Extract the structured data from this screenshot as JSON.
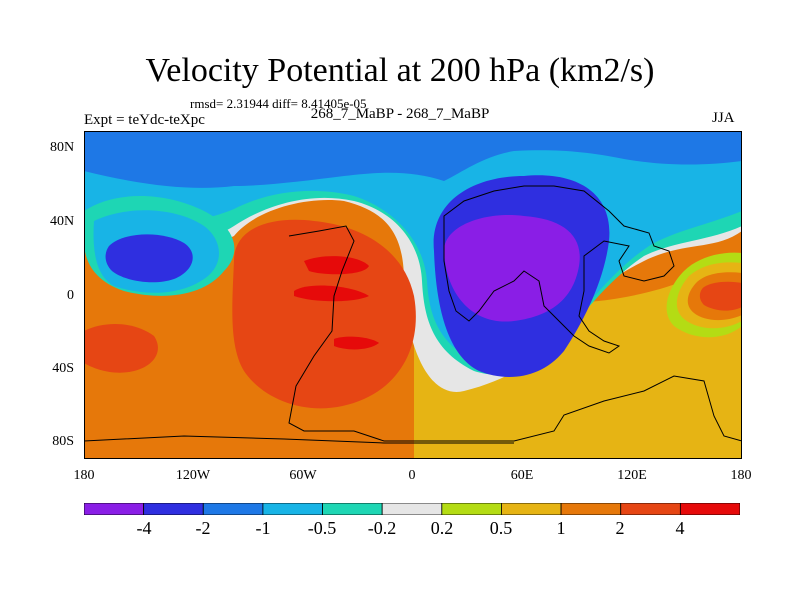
{
  "title": "Velocity Potential at 200 hPa (km2/s)",
  "stats": "rmsd= 2.31944 diff= 8.41405e-05",
  "experiment": "Expt = teYdc-teXpc",
  "comparison": "268_7_MaBP - 268_7_MaBP",
  "season": "JJA",
  "axes": {
    "y_ticks": [
      "80N",
      "40N",
      "0",
      "40S",
      "80S"
    ],
    "x_ticks": [
      "180",
      "120W",
      "60W",
      "0",
      "60E",
      "120E",
      "180"
    ]
  },
  "colorbar": {
    "labels": [
      "-4",
      "-2",
      "-1",
      "-0.5",
      "-0.2",
      "0.2",
      "0.5",
      "1",
      "2",
      "4"
    ],
    "colors": [
      "#8A1EE6",
      "#2F2FE0",
      "#1E78E6",
      "#18B4E6",
      "#1ED6B4",
      "#E6E6E6",
      "#B4DC14",
      "#E6B414",
      "#E6780A",
      "#E64614",
      "#E60A0A"
    ]
  }
}
